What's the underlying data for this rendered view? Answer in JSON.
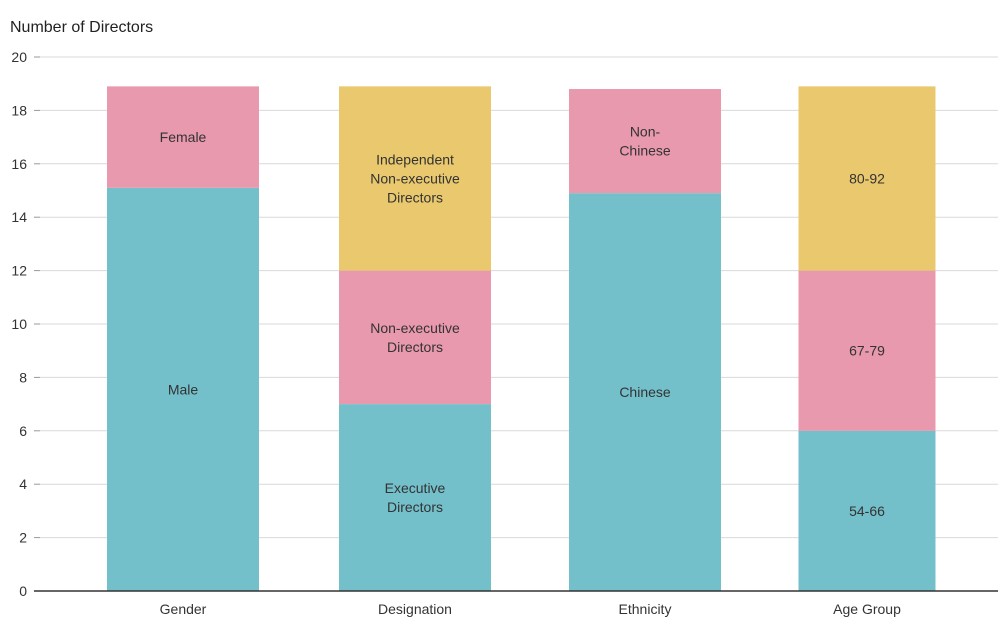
{
  "chart_data": {
    "type": "bar",
    "stacked": true,
    "ylabel": "Number of Directors",
    "xlabel": "",
    "ylim": [
      0,
      20
    ],
    "yticks": [
      0,
      2,
      4,
      6,
      8,
      10,
      12,
      14,
      16,
      18,
      20
    ],
    "grid": true,
    "categories": [
      "Gender",
      "Designation",
      "Ethnicity",
      "Age Group"
    ],
    "stacks": [
      {
        "category": "Gender",
        "segments": [
          {
            "label": "Male",
            "value": 15.1,
            "color": "#73c0cb"
          },
          {
            "label": "Female",
            "value": 3.8,
            "color": "#e899ae"
          }
        ]
      },
      {
        "category": "Designation",
        "segments": [
          {
            "label": "Executive\nDirectors",
            "value": 7,
            "color": "#73c0cb"
          },
          {
            "label": "Non-executive\nDirectors",
            "value": 5,
            "color": "#e899ae"
          },
          {
            "label": "Independent\nNon-executive\nDirectors",
            "value": 6.9,
            "color": "#eac86e"
          }
        ]
      },
      {
        "category": "Ethnicity",
        "segments": [
          {
            "label": "Chinese",
            "value": 14.9,
            "color": "#73c0cb"
          },
          {
            "label": "Non-\nChinese",
            "value": 3.9,
            "color": "#e899ae"
          }
        ]
      },
      {
        "category": "Age Group",
        "segments": [
          {
            "label": "54-66",
            "value": 6,
            "color": "#73c0cb"
          },
          {
            "label": "67-79",
            "value": 6,
            "color": "#e899ae"
          },
          {
            "label": "80-92",
            "value": 6.9,
            "color": "#eac86e"
          }
        ]
      }
    ]
  }
}
